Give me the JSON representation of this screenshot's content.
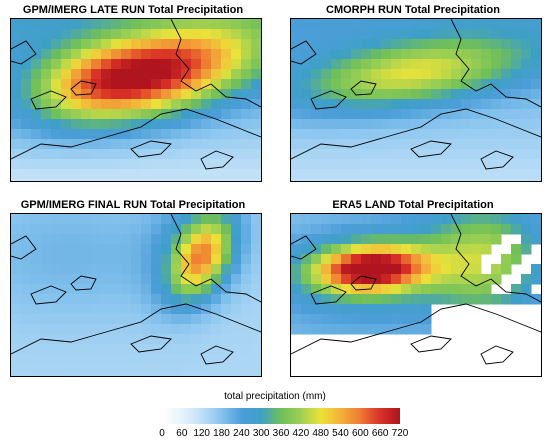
{
  "panels": [
    {
      "title": "GPM/IMERG LATE RUN Total Precipitation"
    },
    {
      "title": "CMORPH RUN Total Precipitation"
    },
    {
      "title": "GPM/IMERG FINAL RUN Total Precipitation"
    },
    {
      "title": "ERA5 LAND Total Precipitation"
    }
  ],
  "colorbar": {
    "title": "total precipitation (mm)",
    "ticks": [
      "0",
      "60",
      "120",
      "180",
      "240",
      "300",
      "360",
      "420",
      "480",
      "540",
      "600",
      "660",
      "720"
    ],
    "colors": [
      "#ffffff",
      "#e6f3fc",
      "#bfe0f7",
      "#86c3ee",
      "#4c9ed9",
      "#3e9fc6",
      "#6fbf5a",
      "#9ed052",
      "#eae23a",
      "#f4b23a",
      "#ee7a30",
      "#d93127",
      "#b0141e"
    ]
  },
  "legend_colors": {
    "low": "#ffffff",
    "high": "#b0141e"
  }
}
